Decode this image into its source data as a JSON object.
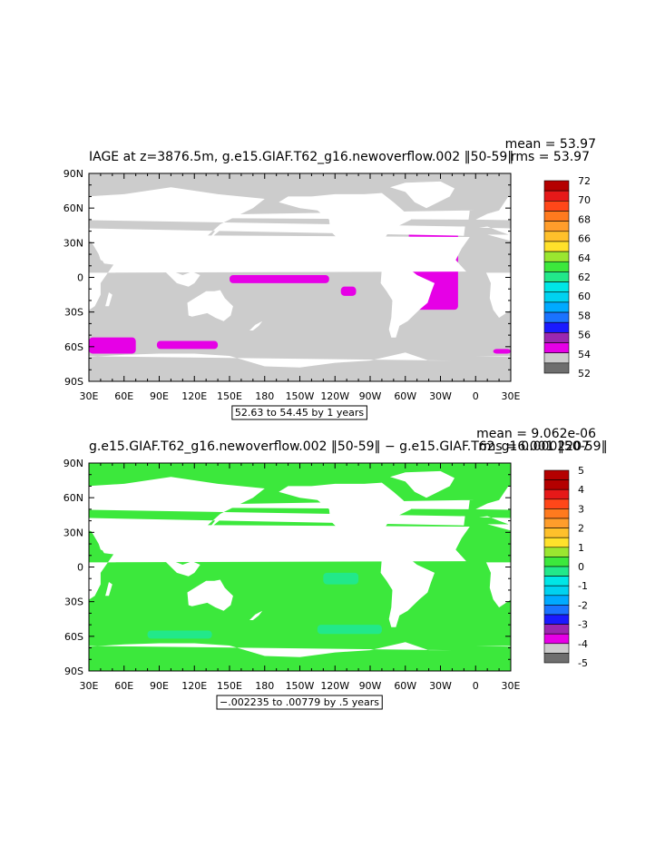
{
  "colors": {
    "land_fill": "#ffffff",
    "scale1": [
      "#6e6e6e",
      "#cccccc",
      "#e600e6",
      "#9c27b0",
      "#1a1aff",
      "#1a73ff",
      "#00aaff",
      "#00d2f0",
      "#00e6e6",
      "#22e88a",
      "#3ce83c",
      "#9ae630",
      "#ffe12b",
      "#ffc02b",
      "#ff9d2b",
      "#ff7a1e",
      "#ff4719",
      "#e61919",
      "#b40000"
    ],
    "scale2": [
      "#6e6e6e",
      "#cccccc",
      "#e600e6",
      "#9c27b0",
      "#1a1aff",
      "#1a73ff",
      "#00aaff",
      "#00d2f0",
      "#00e6e6",
      "#22e88a",
      "#3ce83c",
      "#9ae630",
      "#ffe12b",
      "#ffc02b",
      "#ff9d2b",
      "#ff7a1e",
      "#ff4719",
      "#e61919",
      "#b40000",
      "#b40000"
    ]
  },
  "chart_data": [
    {
      "type": "heatmap",
      "title": "IAGE at z=3876.5m, g.e15.GIAF.T62_g16.newoverflow.002 ‖50-59‖",
      "stats": [
        "mean = 53.97",
        "rms = 53.97"
      ],
      "x_tick_labels": [
        "30E",
        "60E",
        "90E",
        "120E",
        "150E",
        "180",
        "150W",
        "120W",
        "90W",
        "60W",
        "30W",
        "0",
        "30E"
      ],
      "y_tick_labels": [
        "90N",
        "60N",
        "30N",
        "0",
        "30S",
        "60S",
        "90S"
      ],
      "x_range": [
        30,
        390
      ],
      "y_range": [
        -90,
        90
      ],
      "contour_info": "52.63 to 54.45 by 1 years",
      "colorbar_labels": [
        "72",
        "70",
        "68",
        "66",
        "64",
        "62",
        "60",
        "58",
        "56",
        "54",
        "52"
      ],
      "colorbar_min": 52,
      "colorbar_max": 72,
      "dominant_value": 53.5,
      "high_value_regions": [
        {
          "lon": [
            165,
            195
          ],
          "lat": [
            35,
            22
          ],
          "value": 54.3
        },
        {
          "lon": [
            150,
            235
          ],
          "lat": [
            2,
            -5
          ],
          "value": 54.3
        },
        {
          "lon": [
            245,
            258
          ],
          "lat": [
            -8,
            -16
          ],
          "value": 54.3
        },
        {
          "lon": [
            303,
            345
          ],
          "lat": [
            40,
            -28
          ],
          "value": 54.3
        },
        {
          "lon": [
            88,
            140
          ],
          "lat": [
            -55,
            -62
          ],
          "value": 54.3
        },
        {
          "lon": [
            30,
            70
          ],
          "lat": [
            -52,
            -66
          ],
          "value": 54.3
        },
        {
          "lon": [
            375,
            390
          ],
          "lat": [
            -62,
            -66
          ],
          "value": 54.3
        }
      ]
    },
    {
      "type": "heatmap",
      "title": "g.e15.GIAF.T62_g16.newoverflow.002 ‖50-59‖ − g.e15.GIAF.T62_g16.001 ‖50-59‖",
      "stats": [
        "mean = 9.062e-06",
        "rms = 0.0002207"
      ],
      "x_tick_labels": [
        "30E",
        "60E",
        "90E",
        "120E",
        "150E",
        "180",
        "150W",
        "120W",
        "90W",
        "60W",
        "30W",
        "0",
        "30E"
      ],
      "y_tick_labels": [
        "90N",
        "60N",
        "30N",
        "0",
        "30S",
        "60S",
        "90S"
      ],
      "x_range": [
        30,
        390
      ],
      "y_range": [
        -90,
        90
      ],
      "contour_info": "−.002235 to .00779 by .5 years",
      "colorbar_labels": [
        "5",
        "4",
        "3",
        "2",
        "1",
        "0",
        "-1",
        "-2",
        "-3",
        "-4",
        "-5"
      ],
      "colorbar_min": -5,
      "colorbar_max": 5,
      "dominant_value": 0.25,
      "secondary_value": -0.25,
      "secondary_regions": [
        {
          "lon": [
            80,
            135
          ],
          "lat": [
            -55,
            -62
          ]
        },
        {
          "lon": [
            318,
            335
          ],
          "lat": [
            35,
            25
          ]
        },
        {
          "lon": [
            225,
            280
          ],
          "lat": [
            -50,
            -58
          ]
        },
        {
          "lon": [
            230,
            260
          ],
          "lat": [
            -5,
            -15
          ]
        }
      ]
    }
  ]
}
